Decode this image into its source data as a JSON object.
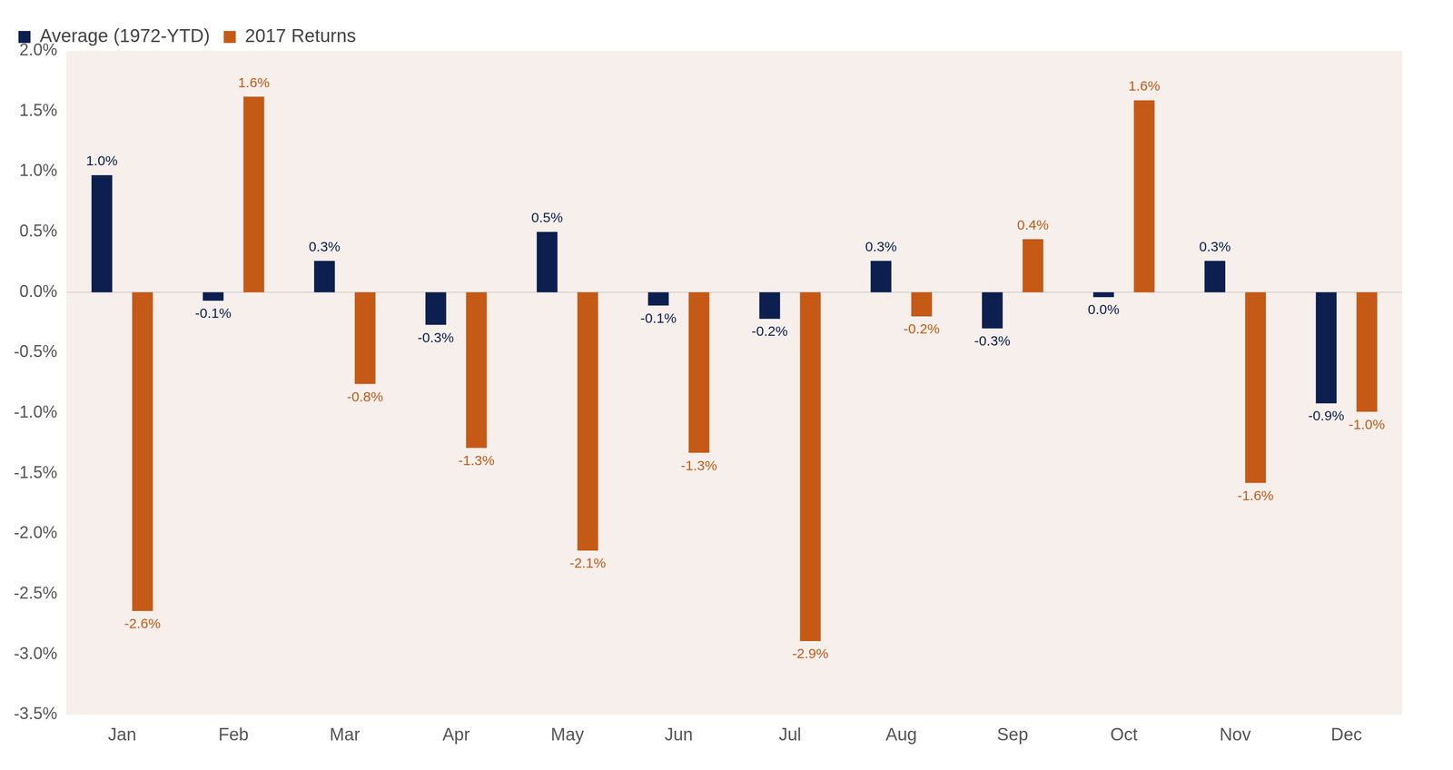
{
  "chart_data": {
    "type": "bar",
    "categories": [
      "Jan",
      "Feb",
      "Mar",
      "Apr",
      "May",
      "Jun",
      "Jul",
      "Aug",
      "Sep",
      "Oct",
      "Nov",
      "Dec"
    ],
    "series": [
      {
        "name": "Average (1972-YTD)",
        "color": "#0c1f4f",
        "values": [
          0.97,
          -0.07,
          0.26,
          -0.27,
          0.5,
          -0.11,
          -0.22,
          0.26,
          -0.3,
          -0.04,
          0.26,
          -0.92
        ],
        "value_labels": [
          "1.0%",
          "-0.1%",
          "0.3%",
          "-0.3%",
          "0.5%",
          "-0.1%",
          "-0.2%",
          "0.3%",
          "-0.3%",
          "0.0%",
          "0.3%",
          "-0.9%"
        ]
      },
      {
        "name": "2017 Returns",
        "color": "#c55a17",
        "values": [
          -2.64,
          1.62,
          -0.76,
          -1.29,
          -2.14,
          -1.33,
          -2.89,
          -0.2,
          0.44,
          1.59,
          -1.58,
          -0.99
        ],
        "value_labels": [
          "-2.6%",
          "1.6%",
          "-0.8%",
          "-1.3%",
          "-2.1%",
          "-1.3%",
          "-2.9%",
          "-0.2%",
          "0.4%",
          "1.6%",
          "-1.6%",
          "-1.0%"
        ]
      }
    ],
    "ylim": [
      -3.5,
      2.0
    ],
    "yticks": [
      {
        "value": -3.5,
        "label": "-3.5%"
      },
      {
        "value": -3.0,
        "label": "-3.0%"
      },
      {
        "value": -2.5,
        "label": "-2.5%"
      },
      {
        "value": -2.0,
        "label": "-2.0%"
      },
      {
        "value": -1.5,
        "label": "-1.5%"
      },
      {
        "value": -1.0,
        "label": "-1.0%"
      },
      {
        "value": -0.5,
        "label": "-0.5%"
      },
      {
        "value": 0.0,
        "label": "0.0%"
      },
      {
        "value": 0.5,
        "label": "0.5%"
      },
      {
        "value": 1.0,
        "label": "1.0%"
      },
      {
        "value": 1.5,
        "label": "1.5%"
      },
      {
        "value": 2.0,
        "label": "2.0%"
      }
    ],
    "grid": false,
    "legend": "top-left",
    "data_labels": true
  }
}
